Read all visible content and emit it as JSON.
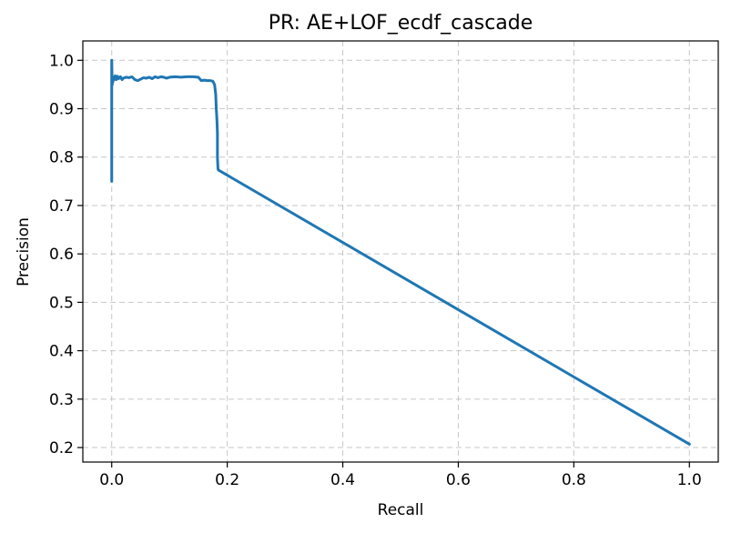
{
  "chart_data": {
    "type": "line",
    "title": "PR: AE+LOF_ecdf_cascade",
    "xlabel": "Recall",
    "ylabel": "Precision",
    "xlim": [
      -0.05,
      1.05
    ],
    "ylim": [
      0.17,
      1.04
    ],
    "xticks": [
      0.0,
      0.2,
      0.4,
      0.6,
      0.8,
      1.0
    ],
    "xtick_labels": [
      "0.0",
      "0.2",
      "0.4",
      "0.6",
      "0.8",
      "1.0"
    ],
    "yticks": [
      0.2,
      0.3,
      0.4,
      0.5,
      0.6,
      0.7,
      0.8,
      0.9,
      1.0
    ],
    "ytick_labels": [
      "0.2",
      "0.3",
      "0.4",
      "0.5",
      "0.6",
      "0.7",
      "0.8",
      "0.9",
      "1.0"
    ],
    "grid": true,
    "series": [
      {
        "color": "#1f77b4",
        "x": [
          0.0,
          0.0,
          0.0005,
          0.001,
          0.001,
          0.002,
          0.003,
          0.004,
          0.005,
          0.006,
          0.008,
          0.01,
          0.012,
          0.015,
          0.018,
          0.02,
          0.025,
          0.03,
          0.035,
          0.04,
          0.045,
          0.05,
          0.055,
          0.06,
          0.065,
          0.07,
          0.075,
          0.08,
          0.085,
          0.09,
          0.095,
          0.1,
          0.11,
          0.12,
          0.13,
          0.14,
          0.15,
          0.155,
          0.16,
          0.165,
          0.17,
          0.175,
          0.178,
          0.18,
          0.181,
          0.182,
          0.183,
          0.183,
          0.184,
          0.185,
          1.0
        ],
        "y": [
          0.75,
          1.0,
          0.97,
          0.95,
          0.96,
          0.955,
          0.965,
          0.96,
          0.963,
          0.968,
          0.96,
          0.967,
          0.962,
          0.966,
          0.96,
          0.963,
          0.965,
          0.964,
          0.966,
          0.96,
          0.958,
          0.961,
          0.964,
          0.963,
          0.965,
          0.962,
          0.966,
          0.964,
          0.966,
          0.965,
          0.963,
          0.965,
          0.966,
          0.965,
          0.966,
          0.966,
          0.965,
          0.958,
          0.959,
          0.958,
          0.958,
          0.957,
          0.95,
          0.93,
          0.9,
          0.88,
          0.85,
          0.8,
          0.775,
          0.773,
          0.207
        ]
      }
    ]
  }
}
